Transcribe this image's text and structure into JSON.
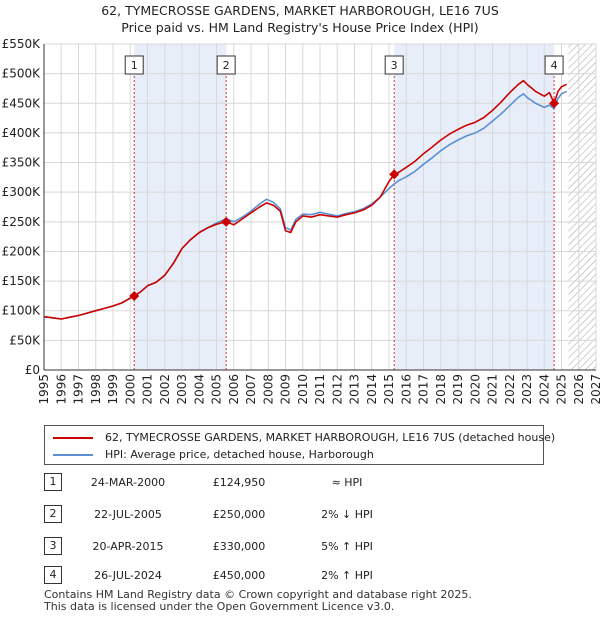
{
  "chart_data": {
    "type": "line",
    "title": "62, TYMECROSSE GARDENS, MARKET HARBOROUGH, LE16 7US",
    "subtitle": "Price paid vs. HM Land Registry's House Price Index (HPI)",
    "xlim": [
      1995,
      2027
    ],
    "ylim": [
      0,
      550000
    ],
    "x_ticks": [
      1995,
      1996,
      1997,
      1998,
      1999,
      2000,
      2001,
      2002,
      2003,
      2004,
      2005,
      2006,
      2007,
      2008,
      2009,
      2010,
      2011,
      2012,
      2013,
      2014,
      2015,
      2016,
      2017,
      2018,
      2019,
      2020,
      2021,
      2022,
      2023,
      2024,
      2025,
      2026,
      2027
    ],
    "x_tick_labels": [
      "1995",
      "1996",
      "1997",
      "1998",
      "1999",
      "2000",
      "2001",
      "2002",
      "2003",
      "2004",
      "2005",
      "2006",
      "2007",
      "2008",
      "2009",
      "2010",
      "2011",
      "2012",
      "2013",
      "2014",
      "2015",
      "2016",
      "2017",
      "2018",
      "2019",
      "2020",
      "2021",
      "2022",
      "2023",
      "2024",
      "2025",
      "2026",
      "2027"
    ],
    "y_ticks": [
      0,
      50000,
      100000,
      150000,
      200000,
      250000,
      300000,
      350000,
      400000,
      450000,
      500000,
      550000
    ],
    "y_tick_labels": [
      "£0",
      "£50K",
      "£100K",
      "£150K",
      "£200K",
      "£250K",
      "£300K",
      "£350K",
      "£400K",
      "£450K",
      "£500K",
      "£550K"
    ],
    "grid": true,
    "shaded_ranges": [
      [
        2000.23,
        2005.56
      ],
      [
        2015.3,
        2024.57
      ]
    ],
    "forecast_start": 2025.4,
    "series": [
      {
        "name": "62, TYMECROSSE GARDENS, MARKET HARBOROUGH, LE16 7US (detached house)",
        "color": "#cc0000",
        "x": [
          1995.0,
          1995.5,
          1996.0,
          1996.5,
          1997.0,
          1997.5,
          1998.0,
          1998.5,
          1999.0,
          1999.5,
          2000.23,
          2000.6,
          2001.0,
          2001.5,
          2002.0,
          2002.5,
          2003.0,
          2003.5,
          2004.0,
          2004.5,
          2005.0,
          2005.56,
          2006.0,
          2006.5,
          2007.0,
          2007.5,
          2007.9,
          2008.3,
          2008.7,
          2009.0,
          2009.3,
          2009.6,
          2010.0,
          2010.5,
          2011.0,
          2011.5,
          2012.0,
          2012.5,
          2013.0,
          2013.5,
          2014.0,
          2014.5,
          2015.0,
          2015.3,
          2015.6,
          2016.0,
          2016.5,
          2017.0,
          2017.5,
          2018.0,
          2018.5,
          2019.0,
          2019.5,
          2020.0,
          2020.5,
          2021.0,
          2021.5,
          2022.0,
          2022.5,
          2022.8,
          2023.0,
          2023.5,
          2024.0,
          2024.3,
          2024.57,
          2024.8,
          2025.0,
          2025.3
        ],
        "y": [
          90000,
          88000,
          86000,
          89000,
          92000,
          96000,
          100000,
          104000,
          108000,
          113000,
          124950,
          132000,
          142000,
          148000,
          160000,
          180000,
          205000,
          220000,
          232000,
          240000,
          246000,
          250000,
          245000,
          255000,
          265000,
          275000,
          282000,
          278000,
          268000,
          235000,
          232000,
          250000,
          260000,
          258000,
          262000,
          260000,
          258000,
          262000,
          265000,
          270000,
          278000,
          292000,
          318000,
          330000,
          334000,
          342000,
          352000,
          365000,
          376000,
          388000,
          398000,
          406000,
          413000,
          418000,
          426000,
          438000,
          452000,
          468000,
          482000,
          488000,
          482000,
          470000,
          462000,
          468000,
          450000,
          470000,
          478000,
          482000
        ]
      },
      {
        "name": "HPI: Average price, detached house, Harborough",
        "color": "#5b8fd4",
        "x": [
          1995.0,
          1995.5,
          1996.0,
          1996.5,
          1997.0,
          1997.5,
          1998.0,
          1998.5,
          1999.0,
          1999.5,
          2000.23,
          2000.6,
          2001.0,
          2001.5,
          2002.0,
          2002.5,
          2003.0,
          2003.5,
          2004.0,
          2004.5,
          2005.0,
          2005.56,
          2006.0,
          2006.5,
          2007.0,
          2007.5,
          2007.9,
          2008.3,
          2008.7,
          2009.0,
          2009.3,
          2009.6,
          2010.0,
          2010.5,
          2011.0,
          2011.5,
          2012.0,
          2012.5,
          2013.0,
          2013.5,
          2014.0,
          2014.5,
          2015.0,
          2015.3,
          2015.6,
          2016.0,
          2016.5,
          2017.0,
          2017.5,
          2018.0,
          2018.5,
          2019.0,
          2019.5,
          2020.0,
          2020.5,
          2021.0,
          2021.5,
          2022.0,
          2022.5,
          2022.8,
          2023.0,
          2023.5,
          2024.0,
          2024.3,
          2024.57,
          2024.8,
          2025.0,
          2025.3
        ],
        "y": [
          90000,
          88000,
          86000,
          89000,
          92000,
          96000,
          100000,
          104000,
          108000,
          113000,
          124950,
          132000,
          142000,
          148000,
          160000,
          180000,
          205000,
          220000,
          232000,
          240000,
          248000,
          255000,
          250000,
          258000,
          268000,
          280000,
          288000,
          283000,
          272000,
          240000,
          236000,
          254000,
          263000,
          262000,
          266000,
          263000,
          260000,
          264000,
          267000,
          272000,
          280000,
          292000,
          306000,
          314000,
          320000,
          326000,
          335000,
          347000,
          358000,
          370000,
          380000,
          388000,
          395000,
          400000,
          408000,
          420000,
          432000,
          446000,
          460000,
          466000,
          460000,
          450000,
          443000,
          447000,
          441000,
          458000,
          466000,
          470000
        ]
      }
    ],
    "sales": [
      {
        "label": "1",
        "x": 2000.23,
        "price": 124950
      },
      {
        "label": "2",
        "x": 2005.56,
        "price": 250000
      },
      {
        "label": "3",
        "x": 2015.3,
        "price": 330000
      },
      {
        "label": "4",
        "x": 2024.57,
        "price": 450000
      }
    ]
  },
  "legend": {
    "property_label": "62, TYMECROSSE GARDENS, MARKET HARBOROUGH, LE16 7US (detached house)",
    "hpi_label": "HPI: Average price, detached house, Harborough"
  },
  "transactions": [
    {
      "num": "1",
      "date": "24-MAR-2000",
      "price": "£124,950",
      "hpi": "≈ HPI"
    },
    {
      "num": "2",
      "date": "22-JUL-2005",
      "price": "£250,000",
      "hpi": "2% ↓ HPI"
    },
    {
      "num": "3",
      "date": "20-APR-2015",
      "price": "£330,000",
      "hpi": "5% ↑ HPI"
    },
    {
      "num": "4",
      "date": "26-JUL-2024",
      "price": "£450,000",
      "hpi": "2% ↑ HPI"
    }
  ],
  "footer": {
    "line1": "Contains HM Land Registry data © Crown copyright and database right 2025.",
    "line2": "This data is licensed under the Open Government Licence v3.0."
  }
}
